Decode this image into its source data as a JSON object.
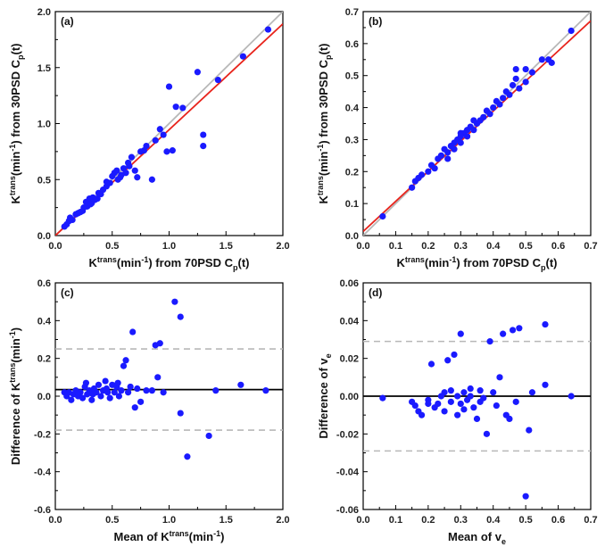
{
  "colors": {
    "points": "#1a1aff",
    "fit_line": "#e8241c",
    "identity_line": "#b8b8b8",
    "mean_line": "#000000",
    "limit_line": "#b8b8b8"
  },
  "chart_data": [
    {
      "type": "scatter",
      "panel_label": "(a)",
      "xlabel": {
        "base": "K",
        "sup": "trans",
        "mid": "(min",
        "sup2": "-1",
        "rest": ") from 70PSD C",
        "sub": "p",
        "tail": "(t)"
      },
      "ylabel": {
        "base": "K",
        "sup": "trans",
        "mid": "(min",
        "sup2": "-1",
        "rest": ") from 30PSD C",
        "sub": "p",
        "tail": "(t)"
      },
      "xlim": [
        0.0,
        2.0
      ],
      "ylim": [
        0.0,
        2.0
      ],
      "xticks": [
        "0.0",
        "0.5",
        "1.0",
        "1.5",
        "2.0"
      ],
      "yticks": [
        "0.0",
        "0.5",
        "1.0",
        "1.5",
        "2.0"
      ],
      "identity_line": true,
      "fit_line": {
        "slope": 0.945,
        "intercept": 0.0
      },
      "points": [
        [
          0.08,
          0.08
        ],
        [
          0.1,
          0.1
        ],
        [
          0.12,
          0.13
        ],
        [
          0.13,
          0.16
        ],
        [
          0.15,
          0.14
        ],
        [
          0.18,
          0.19
        ],
        [
          0.2,
          0.2
        ],
        [
          0.22,
          0.21
        ],
        [
          0.25,
          0.25
        ],
        [
          0.27,
          0.3
        ],
        [
          0.28,
          0.26
        ],
        [
          0.3,
          0.33
        ],
        [
          0.32,
          0.29
        ],
        [
          0.33,
          0.34
        ],
        [
          0.35,
          0.32
        ],
        [
          0.37,
          0.33
        ],
        [
          0.38,
          0.38
        ],
        [
          0.4,
          0.37
        ],
        [
          0.42,
          0.41
        ],
        [
          0.45,
          0.44
        ],
        [
          0.48,
          0.47
        ],
        [
          0.5,
          0.53
        ],
        [
          0.52,
          0.56
        ],
        [
          0.54,
          0.58
        ],
        [
          0.55,
          0.5
        ],
        [
          0.57,
          0.52
        ],
        [
          0.6,
          0.6
        ],
        [
          0.62,
          0.56
        ],
        [
          0.64,
          0.65
        ],
        [
          0.65,
          0.62
        ],
        [
          0.67,
          0.7
        ],
        [
          0.7,
          0.58
        ],
        [
          0.72,
          0.52
        ],
        [
          0.75,
          0.75
        ],
        [
          0.78,
          0.76
        ],
        [
          0.8,
          0.8
        ],
        [
          0.85,
          0.5
        ],
        [
          0.88,
          0.85
        ],
        [
          0.92,
          0.95
        ],
        [
          0.95,
          0.9
        ],
        [
          0.98,
          0.75
        ],
        [
          1.0,
          1.33
        ],
        [
          1.03,
          0.76
        ],
        [
          1.06,
          1.15
        ],
        [
          1.12,
          1.14
        ],
        [
          1.25,
          1.46
        ],
        [
          1.3,
          0.9
        ],
        [
          1.3,
          0.8
        ],
        [
          1.43,
          1.39
        ],
        [
          1.65,
          1.6
        ],
        [
          1.87,
          1.84
        ],
        [
          0.45,
          0.48
        ],
        [
          0.58,
          0.54
        ],
        [
          0.31,
          0.28
        ],
        [
          0.24,
          0.22
        ]
      ]
    },
    {
      "type": "scatter",
      "panel_label": "(b)",
      "xlabel": {
        "base": "K",
        "sup": "trans",
        "mid": "(min",
        "sup2": "-1",
        "rest": ") from 70PSD C",
        "sub": "p",
        "tail": "(t)"
      },
      "ylabel": {
        "base": "K",
        "sup": "trans",
        "mid": "(min",
        "sup2": "-1",
        "rest": ") from 30PSD C",
        "sub": "p",
        "tail": "(t)"
      },
      "xlim": [
        0.0,
        0.7
      ],
      "ylim": [
        0.0,
        0.7
      ],
      "xticks": [
        "0.0",
        "0.1",
        "0.2",
        "0.3",
        "0.4",
        "0.5",
        "0.6",
        "0.7"
      ],
      "yticks": [
        "0.0",
        "0.1",
        "0.2",
        "0.3",
        "0.4",
        "0.5",
        "0.6",
        "0.7"
      ],
      "identity_line": true,
      "fit_line": {
        "slope": 0.94,
        "intercept": 0.013
      },
      "points": [
        [
          0.06,
          0.06
        ],
        [
          0.15,
          0.15
        ],
        [
          0.16,
          0.17
        ],
        [
          0.17,
          0.18
        ],
        [
          0.18,
          0.19
        ],
        [
          0.2,
          0.2
        ],
        [
          0.21,
          0.22
        ],
        [
          0.22,
          0.21
        ],
        [
          0.23,
          0.24
        ],
        [
          0.24,
          0.25
        ],
        [
          0.25,
          0.27
        ],
        [
          0.26,
          0.26
        ],
        [
          0.27,
          0.28
        ],
        [
          0.28,
          0.29
        ],
        [
          0.28,
          0.27
        ],
        [
          0.29,
          0.3
        ],
        [
          0.3,
          0.31
        ],
        [
          0.3,
          0.29
        ],
        [
          0.31,
          0.32
        ],
        [
          0.32,
          0.31
        ],
        [
          0.32,
          0.33
        ],
        [
          0.33,
          0.34
        ],
        [
          0.34,
          0.33
        ],
        [
          0.35,
          0.35
        ],
        [
          0.36,
          0.36
        ],
        [
          0.37,
          0.37
        ],
        [
          0.38,
          0.39
        ],
        [
          0.39,
          0.38
        ],
        [
          0.4,
          0.4
        ],
        [
          0.41,
          0.42
        ],
        [
          0.42,
          0.41
        ],
        [
          0.43,
          0.43
        ],
        [
          0.44,
          0.45
        ],
        [
          0.45,
          0.44
        ],
        [
          0.46,
          0.47
        ],
        [
          0.47,
          0.49
        ],
        [
          0.47,
          0.52
        ],
        [
          0.48,
          0.46
        ],
        [
          0.5,
          0.52
        ],
        [
          0.5,
          0.48
        ],
        [
          0.52,
          0.51
        ],
        [
          0.55,
          0.55
        ],
        [
          0.57,
          0.55
        ],
        [
          0.58,
          0.54
        ],
        [
          0.64,
          0.64
        ],
        [
          0.3,
          0.32
        ],
        [
          0.26,
          0.24
        ],
        [
          0.34,
          0.36
        ]
      ]
    },
    {
      "type": "scatter",
      "panel_label": "(c)",
      "xlabel": {
        "base": "Mean of K",
        "sup": "trans",
        "mid": "(min",
        "sup2": "-1",
        "rest": ")",
        "sub": "",
        "tail": ""
      },
      "ylabel": {
        "base": "Difference of K",
        "sup": "trans",
        "mid": "(min",
        "sup2": "-1",
        "rest": ")",
        "sub": "",
        "tail": ""
      },
      "xlim": [
        0.0,
        2.0
      ],
      "ylim": [
        -0.6,
        0.6
      ],
      "xticks": [
        "0.0",
        "0.5",
        "1.0",
        "1.5",
        "2.0"
      ],
      "yticks": [
        "-0.6",
        "-0.4",
        "-0.2",
        "0.0",
        "0.2",
        "0.4",
        "0.6"
      ],
      "mean_line": 0.035,
      "limits": [
        0.25,
        -0.18
      ],
      "points": [
        [
          0.08,
          0.02
        ],
        [
          0.1,
          0.0
        ],
        [
          0.12,
          0.02
        ],
        [
          0.14,
          -0.02
        ],
        [
          0.16,
          0.01
        ],
        [
          0.18,
          0.03
        ],
        [
          0.2,
          0.0
        ],
        [
          0.22,
          0.02
        ],
        [
          0.24,
          -0.01
        ],
        [
          0.26,
          0.05
        ],
        [
          0.28,
          0.01
        ],
        [
          0.3,
          0.03
        ],
        [
          0.32,
          -0.02
        ],
        [
          0.34,
          0.04
        ],
        [
          0.36,
          0.02
        ],
        [
          0.38,
          0.06
        ],
        [
          0.4,
          0.0
        ],
        [
          0.42,
          0.03
        ],
        [
          0.44,
          0.08
        ],
        [
          0.46,
          0.02
        ],
        [
          0.48,
          -0.01
        ],
        [
          0.5,
          0.06
        ],
        [
          0.52,
          0.02
        ],
        [
          0.54,
          0.05
        ],
        [
          0.56,
          0.0
        ],
        [
          0.58,
          0.03
        ],
        [
          0.6,
          0.16
        ],
        [
          0.62,
          0.19
        ],
        [
          0.64,
          0.02
        ],
        [
          0.66,
          0.05
        ],
        [
          0.68,
          0.34
        ],
        [
          0.7,
          -0.06
        ],
        [
          0.72,
          0.04
        ],
        [
          0.75,
          -0.03
        ],
        [
          0.8,
          0.03
        ],
        [
          0.85,
          0.03
        ],
        [
          0.88,
          0.27
        ],
        [
          0.9,
          0.1
        ],
        [
          0.92,
          0.28
        ],
        [
          0.95,
          0.02
        ],
        [
          1.05,
          0.5
        ],
        [
          1.1,
          0.42
        ],
        [
          1.1,
          -0.09
        ],
        [
          1.16,
          -0.32
        ],
        [
          1.35,
          -0.21
        ],
        [
          1.41,
          0.03
        ],
        [
          1.63,
          0.06
        ],
        [
          1.85,
          0.03
        ],
        [
          0.27,
          0.07
        ],
        [
          0.33,
          0.01
        ],
        [
          0.45,
          0.04
        ],
        [
          0.55,
          0.07
        ]
      ]
    },
    {
      "type": "scatter",
      "panel_label": "(d)",
      "xlabel": {
        "base": "Mean of v",
        "sup": "",
        "mid": "",
        "sup2": "",
        "rest": "",
        "sub": "e",
        "tail": ""
      },
      "ylabel": {
        "base": "Difference of v",
        "sup": "",
        "mid": "",
        "sup2": "",
        "rest": "",
        "sub": "e",
        "tail": ""
      },
      "xlim": [
        0.0,
        0.7
      ],
      "ylim": [
        -0.06,
        0.06
      ],
      "xticks": [
        "0.0",
        "0.1",
        "0.2",
        "0.3",
        "0.4",
        "0.5",
        "0.6",
        "0.7"
      ],
      "yticks": [
        "-0.06",
        "-0.04",
        "-0.02",
        "0.00",
        "0.02",
        "0.04",
        "0.06"
      ],
      "mean_line": 0.0,
      "limits": [
        0.029,
        -0.029
      ],
      "points": [
        [
          0.06,
          -0.001
        ],
        [
          0.15,
          -0.003
        ],
        [
          0.16,
          -0.005
        ],
        [
          0.17,
          -0.008
        ],
        [
          0.18,
          -0.01
        ],
        [
          0.2,
          -0.002
        ],
        [
          0.21,
          0.017
        ],
        [
          0.22,
          -0.006
        ],
        [
          0.23,
          -0.004
        ],
        [
          0.24,
          0.0
        ],
        [
          0.25,
          0.002
        ],
        [
          0.26,
          0.019
        ],
        [
          0.27,
          -0.003
        ],
        [
          0.28,
          0.022
        ],
        [
          0.29,
          0.0
        ],
        [
          0.29,
          -0.01
        ],
        [
          0.3,
          0.033
        ],
        [
          0.3,
          -0.004
        ],
        [
          0.31,
          0.002
        ],
        [
          0.32,
          -0.002
        ],
        [
          0.33,
          0.0
        ],
        [
          0.34,
          -0.006
        ],
        [
          0.35,
          -0.012
        ],
        [
          0.36,
          0.003
        ],
        [
          0.37,
          -0.001
        ],
        [
          0.38,
          -0.02
        ],
        [
          0.39,
          0.029
        ],
        [
          0.4,
          0.002
        ],
        [
          0.41,
          -0.005
        ],
        [
          0.42,
          0.01
        ],
        [
          0.43,
          0.033
        ],
        [
          0.44,
          -0.01
        ],
        [
          0.45,
          -0.012
        ],
        [
          0.46,
          0.035
        ],
        [
          0.47,
          -0.003
        ],
        [
          0.48,
          0.036
        ],
        [
          0.5,
          -0.053
        ],
        [
          0.51,
          -0.018
        ],
        [
          0.52,
          0.002
        ],
        [
          0.56,
          0.038
        ],
        [
          0.56,
          0.006
        ],
        [
          0.64,
          0.0
        ],
        [
          0.25,
          -0.008
        ],
        [
          0.27,
          0.003
        ],
        [
          0.31,
          -0.007
        ],
        [
          0.33,
          0.004
        ],
        [
          0.36,
          -0.003
        ],
        [
          0.2,
          -0.004
        ]
      ]
    }
  ]
}
